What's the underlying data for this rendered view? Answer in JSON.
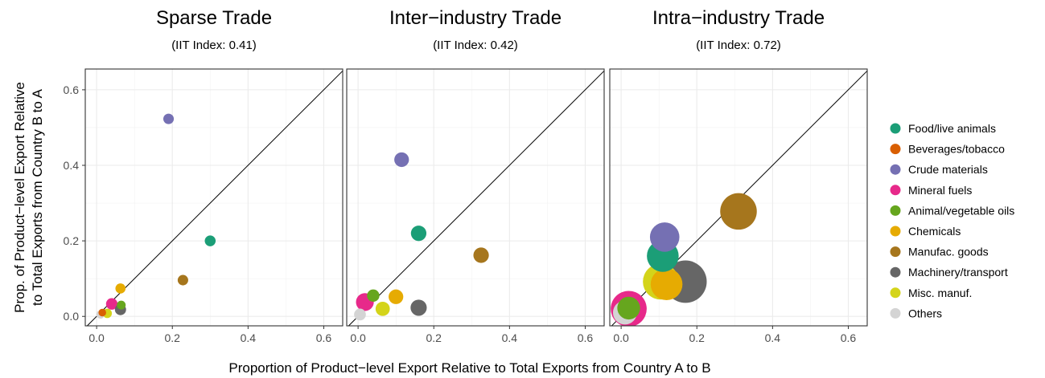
{
  "chart_data": {
    "type": "scatter",
    "xlabel": "Proportion of Product−level Export Relative to Total Exports from Country A to B",
    "ylabel_line1": "Prop. of Product−level Export Relative",
    "ylabel_line2": "to Total Exports from Country B to A",
    "xlim": [
      -0.03,
      0.65
    ],
    "ylim": [
      -0.025,
      0.655
    ],
    "xticks": [
      "0.0",
      "0.2",
      "0.4",
      "0.6"
    ],
    "yticks": [
      "0.0",
      "0.2",
      "0.4",
      "0.6"
    ],
    "reference_line": "y = x",
    "grid": true,
    "legend_position": "right",
    "categories": [
      {
        "name": "Food/live animals",
        "color": "#1b9e77"
      },
      {
        "name": "Beverages/tobacco",
        "color": "#d95f02"
      },
      {
        "name": "Crude materials",
        "color": "#7570b3"
      },
      {
        "name": "Mineral fuels",
        "color": "#e7298a"
      },
      {
        "name": "Animal/vegetable oils",
        "color": "#66a61e"
      },
      {
        "name": "Chemicals",
        "color": "#e6ab02"
      },
      {
        "name": "Manufac. goods",
        "color": "#a6761d"
      },
      {
        "name": "Machinery/transport",
        "color": "#666666"
      },
      {
        "name": "Misc. manuf.",
        "color": "#d4d41a"
      },
      {
        "name": "Others",
        "color": "#d4d4d4"
      }
    ],
    "panels": [
      {
        "title": "Sparse Trade",
        "subtitle": "(IIT Index: 0.41)",
        "points": [
          {
            "cat": 0,
            "x": 0.3,
            "y": 0.2,
            "size": 0.09
          },
          {
            "cat": 1,
            "x": 0.015,
            "y": 0.01,
            "size": 0.02
          },
          {
            "cat": 2,
            "x": 0.19,
            "y": 0.523,
            "size": 0.08
          },
          {
            "cat": 3,
            "x": 0.04,
            "y": 0.033,
            "size": 0.11
          },
          {
            "cat": 4,
            "x": 0.065,
            "y": 0.03,
            "size": 0.04
          },
          {
            "cat": 5,
            "x": 0.063,
            "y": 0.074,
            "size": 0.07
          },
          {
            "cat": 6,
            "x": 0.228,
            "y": 0.096,
            "size": 0.08
          },
          {
            "cat": 7,
            "x": 0.063,
            "y": 0.018,
            "size": 0.1
          },
          {
            "cat": 8,
            "x": 0.028,
            "y": 0.008,
            "size": 0.05
          },
          {
            "cat": 9,
            "x": 0.01,
            "y": 0.005,
            "size": 0.03
          }
        ]
      },
      {
        "title": "Inter−industry Trade",
        "subtitle": "(IIT Index: 0.42)",
        "points": [
          {
            "cat": 0,
            "x": 0.16,
            "y": 0.22,
            "size": 0.28
          },
          {
            "cat": 2,
            "x": 0.115,
            "y": 0.415,
            "size": 0.24
          },
          {
            "cat": 3,
            "x": 0.018,
            "y": 0.038,
            "size": 0.42
          },
          {
            "cat": 4,
            "x": 0.04,
            "y": 0.055,
            "size": 0.14
          },
          {
            "cat": 5,
            "x": 0.1,
            "y": 0.052,
            "size": 0.24
          },
          {
            "cat": 6,
            "x": 0.325,
            "y": 0.162,
            "size": 0.28
          },
          {
            "cat": 7,
            "x": 0.16,
            "y": 0.023,
            "size": 0.32
          },
          {
            "cat": 8,
            "x": 0.065,
            "y": 0.02,
            "size": 0.22
          },
          {
            "cat": 9,
            "x": 0.005,
            "y": 0.005,
            "size": 0.12
          }
        ]
      },
      {
        "title": "Intra−industry Trade",
        "subtitle": "(IIT Index: 0.72)",
        "points": [
          {
            "cat": 3,
            "x": 0.02,
            "y": 0.02,
            "size": 2.4
          },
          {
            "cat": 4,
            "x": 0.02,
            "y": 0.022,
            "size": 0.8
          },
          {
            "cat": 6,
            "x": 0.31,
            "y": 0.278,
            "size": 2.5
          },
          {
            "cat": 7,
            "x": 0.17,
            "y": 0.092,
            "size": 3.5
          },
          {
            "cat": 5,
            "x": 0.12,
            "y": 0.085,
            "size": 1.8
          },
          {
            "cat": 2,
            "x": 0.115,
            "y": 0.21,
            "size": 1.5
          },
          {
            "cat": 0,
            "x": 0.11,
            "y": 0.16,
            "size": 1.8
          },
          {
            "cat": 8,
            "x": 0.105,
            "y": 0.092,
            "size": 2.4
          },
          {
            "cat": 9,
            "x": 0.01,
            "y": 0.01,
            "size": 0.9
          }
        ]
      }
    ]
  }
}
